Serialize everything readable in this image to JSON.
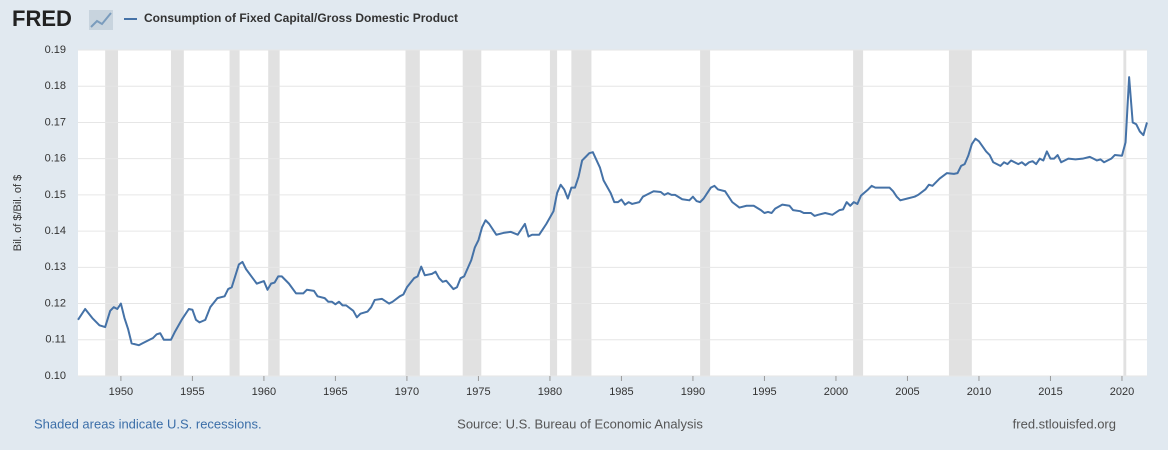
{
  "logo": "FRED",
  "footer": {
    "left": "Shaded areas indicate U.S. recessions.",
    "center": "Source: U.S. Bureau of Economic Analysis",
    "right": "fred.stlouisfed.org"
  },
  "chart_data": {
    "type": "line",
    "y_label": "Bil. of $/Bil. of $",
    "xlim": [
      1947,
      2021.75
    ],
    "ylim": [
      0.1,
      0.19
    ],
    "xticks": [
      1950,
      1955,
      1960,
      1965,
      1970,
      1975,
      1980,
      1985,
      1990,
      1995,
      2000,
      2005,
      2010,
      2015,
      2020
    ],
    "yticks": [
      {
        "value": 0.1,
        "label": "0.10"
      },
      0.11,
      0.12,
      0.13,
      0.14,
      0.15,
      0.16,
      0.17,
      0.18,
      0.19
    ],
    "grid": true,
    "recession_color": "#e1e1e1",
    "recessions": [
      [
        1948.9,
        1949.8
      ],
      [
        1953.5,
        1954.4
      ],
      [
        1957.6,
        1958.3
      ],
      [
        1960.3,
        1961.1
      ],
      [
        1969.9,
        1970.9
      ],
      [
        1973.9,
        1975.2
      ],
      [
        1980.0,
        1980.5
      ],
      [
        1981.5,
        1982.9
      ],
      [
        1990.5,
        1991.2
      ],
      [
        2001.2,
        2001.9
      ],
      [
        2007.9,
        2009.5
      ],
      [
        2020.1,
        2020.3
      ]
    ],
    "x": [
      1947.0,
      1947.5,
      1948.0,
      1948.5,
      1948.9,
      1949.25,
      1949.5,
      1949.75,
      1950.0,
      1950.25,
      1950.5,
      1950.75,
      1951.25,
      1951.5,
      1952.0,
      1952.25,
      1952.5,
      1952.75,
      1953.0,
      1953.5,
      1953.75,
      1954.25,
      1954.75,
      1955.0,
      1955.25,
      1955.5,
      1955.9,
      1956.25,
      1956.75,
      1957.25,
      1957.5,
      1957.75,
      1958.25,
      1958.5,
      1958.75,
      1959.5,
      1960.0,
      1960.25,
      1960.5,
      1960.75,
      1961.0,
      1961.25,
      1961.75,
      1962.25,
      1962.75,
      1963.0,
      1963.5,
      1963.75,
      1964.25,
      1964.5,
      1964.75,
      1965.0,
      1965.25,
      1965.5,
      1965.75,
      1966.25,
      1966.5,
      1966.75,
      1967.25,
      1967.5,
      1967.75,
      1968.25,
      1968.75,
      1969.0,
      1969.5,
      1969.75,
      1970.0,
      1970.5,
      1970.75,
      1971.0,
      1971.25,
      1971.75,
      1972.0,
      1972.25,
      1972.5,
      1972.75,
      1973.25,
      1973.5,
      1973.75,
      1974.0,
      1974.5,
      1974.75,
      1975.0,
      1975.25,
      1975.5,
      1975.75,
      1976.25,
      1976.75,
      1977.25,
      1977.75,
      1978.25,
      1978.5,
      1978.75,
      1979.25,
      1979.5,
      1979.75,
      1980.25,
      1980.5,
      1980.75,
      1981.0,
      1981.25,
      1981.5,
      1981.75,
      1982.0,
      1982.25,
      1982.5,
      1982.75,
      1983.0,
      1983.5,
      1983.75,
      1984.25,
      1984.5,
      1984.75,
      1985.0,
      1985.25,
      1985.5,
      1985.75,
      1986.25,
      1986.5,
      1986.75,
      1987.25,
      1987.75,
      1988.0,
      1988.25,
      1988.5,
      1988.75,
      1989.25,
      1989.75,
      1990.0,
      1990.25,
      1990.5,
      1990.75,
      1991.0,
      1991.25,
      1991.5,
      1991.75,
      1992.25,
      1992.75,
      1993.25,
      1993.75,
      1994.25,
      1994.75,
      1995.0,
      1995.25,
      1995.5,
      1995.75,
      1996.25,
      1996.75,
      1997.0,
      1997.5,
      1997.75,
      1998.25,
      1998.5,
      1998.75,
      1999.25,
      1999.75,
      2000.25,
      2000.5,
      2000.75,
      2001.0,
      2001.25,
      2001.5,
      2001.75,
      2002.25,
      2002.5,
      2002.75,
      2003.25,
      2003.75,
      2004.0,
      2004.25,
      2004.5,
      2005.0,
      2005.5,
      2005.75,
      2006.25,
      2006.5,
      2006.75,
      2007.25,
      2007.75,
      2008.25,
      2008.5,
      2008.75,
      2009.0,
      2009.25,
      2009.5,
      2009.75,
      2010.0,
      2010.5,
      2010.75,
      2011.0,
      2011.5,
      2011.75,
      2012.0,
      2012.25,
      2012.75,
      2013.0,
      2013.25,
      2013.5,
      2013.75,
      2014.0,
      2014.25,
      2014.5,
      2014.75,
      2015.0,
      2015.25,
      2015.5,
      2015.75,
      2016.25,
      2016.75,
      2017.25,
      2017.75,
      2018.0,
      2018.25,
      2018.5,
      2018.75,
      2019.25,
      2019.5,
      2020.0,
      2020.25,
      2020.5,
      2020.75,
      2021.0,
      2021.25,
      2021.5,
      2021.75
    ],
    "series": [
      {
        "name": "Consumption of Fixed Capital/Gross Domestic Product",
        "color": "#4572a7",
        "values": [
          0.1155,
          0.1185,
          0.116,
          0.114,
          0.1135,
          0.118,
          0.119,
          0.1185,
          0.12,
          0.116,
          0.113,
          0.109,
          0.1085,
          0.109,
          0.11,
          0.1105,
          0.1115,
          0.1118,
          0.11,
          0.11,
          0.112,
          0.1155,
          0.1185,
          0.1183,
          0.1155,
          0.1148,
          0.1155,
          0.119,
          0.1215,
          0.122,
          0.124,
          0.1245,
          0.1308,
          0.1315,
          0.1295,
          0.1255,
          0.1262,
          0.1238,
          0.1255,
          0.1258,
          0.1275,
          0.1275,
          0.1255,
          0.1228,
          0.1228,
          0.1238,
          0.1235,
          0.122,
          0.1215,
          0.1205,
          0.1205,
          0.1198,
          0.1205,
          0.1195,
          0.1195,
          0.118,
          0.1162,
          0.1172,
          0.1178,
          0.119,
          0.121,
          0.1213,
          0.12,
          0.1205,
          0.122,
          0.1225,
          0.1245,
          0.127,
          0.1275,
          0.1302,
          0.1278,
          0.1282,
          0.1288,
          0.127,
          0.126,
          0.1263,
          0.124,
          0.1245,
          0.127,
          0.1275,
          0.132,
          0.1355,
          0.1375,
          0.141,
          0.143,
          0.142,
          0.139,
          0.1395,
          0.1398,
          0.139,
          0.142,
          0.1385,
          0.139,
          0.139,
          0.1405,
          0.142,
          0.1455,
          0.1505,
          0.1528,
          0.1515,
          0.149,
          0.152,
          0.152,
          0.155,
          0.1595,
          0.1605,
          0.1615,
          0.1618,
          0.1575,
          0.154,
          0.1505,
          0.148,
          0.148,
          0.1487,
          0.1473,
          0.148,
          0.1475,
          0.148,
          0.1495,
          0.15,
          0.151,
          0.1508,
          0.15,
          0.1505,
          0.15,
          0.15,
          0.1488,
          0.1485,
          0.1495,
          0.1483,
          0.148,
          0.149,
          0.1505,
          0.152,
          0.1525,
          0.1515,
          0.151,
          0.148,
          0.1465,
          0.147,
          0.147,
          0.1458,
          0.145,
          0.1453,
          0.145,
          0.1462,
          0.1473,
          0.147,
          0.1458,
          0.1455,
          0.145,
          0.145,
          0.1442,
          0.1445,
          0.145,
          0.1445,
          0.1458,
          0.146,
          0.148,
          0.147,
          0.148,
          0.1475,
          0.1498,
          0.1515,
          0.1525,
          0.152,
          0.152,
          0.152,
          0.151,
          0.1495,
          0.1485,
          0.149,
          0.1495,
          0.15,
          0.1515,
          0.1528,
          0.1525,
          0.1545,
          0.156,
          0.1558,
          0.156,
          0.158,
          0.1585,
          0.1608,
          0.164,
          0.1655,
          0.1648,
          0.162,
          0.161,
          0.159,
          0.158,
          0.159,
          0.1585,
          0.1595,
          0.1585,
          0.159,
          0.1582,
          0.159,
          0.1593,
          0.1585,
          0.16,
          0.1595,
          0.162,
          0.16,
          0.16,
          0.161,
          0.159,
          0.16,
          0.1598,
          0.16,
          0.1605,
          0.16,
          0.1595,
          0.1598,
          0.159,
          0.16,
          0.161,
          0.1608,
          0.1645,
          0.1825,
          0.17,
          0.1695,
          0.1675,
          0.1665,
          0.17
        ]
      }
    ]
  }
}
